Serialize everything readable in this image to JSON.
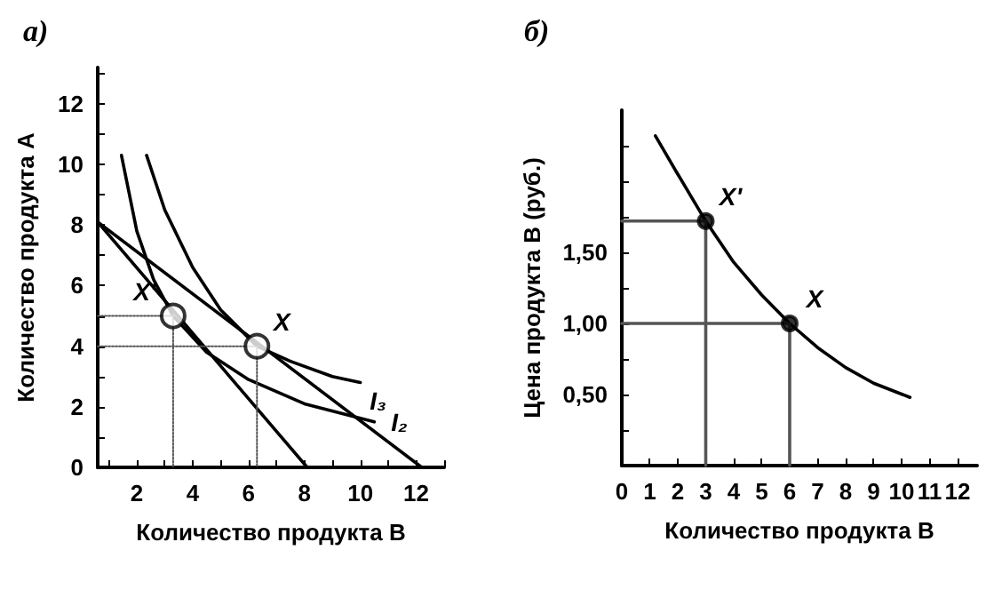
{
  "chart_data": [
    {
      "type": "line",
      "title": "а)",
      "xlabel": "Количество продукта B",
      "ylabel": "Количество продукта A",
      "xlim": [
        0.6,
        13
      ],
      "ylim": [
        0,
        13.2
      ],
      "xticks": [
        {
          "value": 1,
          "label": null
        },
        2,
        {
          "value": 3,
          "label": null
        },
        4,
        {
          "value": 5,
          "label": null
        },
        6,
        {
          "value": 7,
          "label": null
        },
        8,
        {
          "value": 9,
          "label": null
        },
        10,
        {
          "value": 11,
          "label": null
        },
        12,
        {
          "value": 13,
          "label": null
        }
      ],
      "yticks": [
        0,
        {
          "value": 1,
          "label": null
        },
        2,
        {
          "value": 3,
          "label": null
        },
        4,
        {
          "value": 5,
          "label": null
        },
        6,
        {
          "value": 7,
          "label": null
        },
        8,
        {
          "value": 9,
          "label": null
        },
        10,
        {
          "value": 11,
          "label": null
        },
        12,
        {
          "value": 13,
          "label": null
        }
      ],
      "grid": false,
      "marker": "none",
      "line_style": "solid",
      "series": [
        {
          "color": "#000000",
          "x": [
            0.6,
            8.1
          ],
          "values": [
            8.1,
            0
          ]
        },
        {
          "color": "#000000",
          "x": [
            0.6,
            12.2
          ],
          "values": [
            8.1,
            0
          ]
        },
        {
          "color": "#000000",
          "x": [
            1.45,
            2,
            2.6,
            3.3,
            4.5,
            6,
            8,
            10.5
          ],
          "values": [
            10.3,
            7.8,
            6.2,
            5,
            3.8,
            2.9,
            2.1,
            1.5
          ]
        },
        {
          "color": "#000000",
          "x": [
            2.35,
            3,
            4,
            5,
            6.3,
            7.5,
            9,
            10
          ],
          "values": [
            10.3,
            8.5,
            6.6,
            5.2,
            4,
            3.5,
            3,
            2.8
          ]
        },
        {
          "color": "#555555",
          "line_style": "dotted",
          "x": [
            0.6,
            3.3,
            3.3
          ],
          "values": [
            5,
            5,
            0
          ]
        },
        {
          "color": "#555555",
          "line_style": "dotted",
          "x": [
            0.6,
            6.3,
            6.3
          ],
          "values": [
            4,
            4,
            0
          ]
        },
        {
          "type": "scatter",
          "marker": "circle",
          "color": "#ffffff",
          "x": [
            3.3,
            6.3
          ],
          "values": [
            5,
            4
          ]
        }
      ],
      "annotations": [
        {
          "text": "X'",
          "x": 3.3,
          "y": 5
        },
        {
          "text": "X",
          "x": 6.3,
          "y": 4
        },
        {
          "text": "I₃",
          "x": 10,
          "y": 2.8
        },
        {
          "text": "I₂",
          "x": 10.5,
          "y": 1.5
        }
      ]
    },
    {
      "type": "line",
      "title": "б)",
      "xlabel": "Количество продукта B",
      "ylabel": "Цена продукта B (руб.)",
      "xlim": [
        0,
        12.7
      ],
      "ylim": [
        0,
        2.5
      ],
      "xticks": [
        0,
        1,
        2,
        3,
        4,
        5,
        6,
        7,
        8,
        9,
        10,
        11,
        12
      ],
      "yticks": [
        {
          "value": 0.25,
          "label": null
        },
        {
          "value": 0.5,
          "label": "0,50"
        },
        {
          "value": 0.75,
          "label": null
        },
        {
          "value": 1,
          "label": "1,00"
        },
        {
          "value": 1.25,
          "label": null
        },
        {
          "value": 1.5,
          "label": "1,50"
        },
        {
          "value": 1.75,
          "label": null
        },
        {
          "value": 2,
          "label": null
        },
        {
          "value": 2.25,
          "label": null
        }
      ],
      "grid": false,
      "marker": "none",
      "line_style": "solid",
      "series": [
        {
          "color": "#000000",
          "x": [
            1.2,
            2,
            3,
            4,
            5,
            6,
            7,
            8,
            9,
            10.3
          ],
          "values": [
            2.32,
            2.05,
            1.72,
            1.43,
            1.2,
            1,
            0.83,
            0.69,
            0.58,
            0.48
          ]
        },
        {
          "color": "#555555",
          "x": [
            0,
            3,
            3
          ],
          "values": [
            1.72,
            1.72,
            0
          ]
        },
        {
          "color": "#555555",
          "x": [
            0,
            6,
            6
          ],
          "values": [
            1,
            1,
            0
          ]
        },
        {
          "type": "scatter",
          "marker": "circle",
          "color": "#000000",
          "x": [
            3,
            6
          ],
          "values": [
            1.72,
            1
          ]
        }
      ],
      "annotations": [
        {
          "text": "X'",
          "x": 3,
          "y": 1.72
        },
        {
          "text": "X",
          "x": 6,
          "y": 1
        }
      ]
    }
  ]
}
